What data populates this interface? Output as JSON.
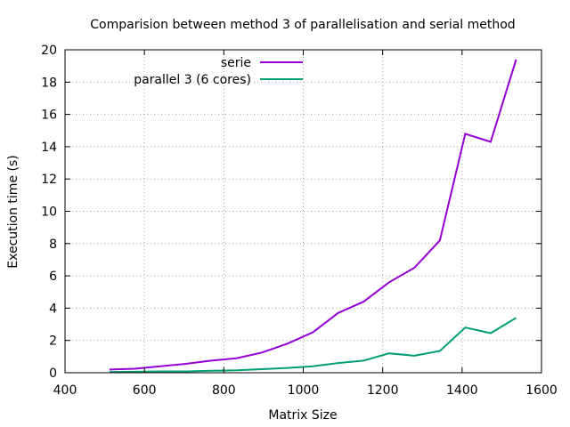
{
  "chart_data": {
    "type": "line",
    "title": "Comparision between method 3 of parallelisation and serial method",
    "xlabel": "Matrix Size",
    "ylabel": "Execution time (s)",
    "xlim": [
      400,
      1600
    ],
    "ylim": [
      0,
      20
    ],
    "xticks": [
      400,
      600,
      800,
      1000,
      1200,
      1400,
      1600
    ],
    "yticks": [
      0,
      2,
      4,
      6,
      8,
      10,
      12,
      14,
      16,
      18,
      20
    ],
    "grid": true,
    "legend_position": "top-center",
    "x": [
      512,
      576,
      640,
      704,
      768,
      832,
      896,
      960,
      1024,
      1088,
      1152,
      1216,
      1280,
      1344,
      1408,
      1472,
      1536
    ],
    "series": [
      {
        "name": "serie",
        "color": "#9400d3",
        "values": [
          0.2,
          0.25,
          0.4,
          0.55,
          0.75,
          0.9,
          1.25,
          1.8,
          2.5,
          3.7,
          4.4,
          5.6,
          6.5,
          8.2,
          14.8,
          14.3,
          19.4
        ]
      },
      {
        "name": "parallel 3 (6 cores)",
        "color": "#009e73",
        "values": [
          0.05,
          0.06,
          0.08,
          0.08,
          0.12,
          0.15,
          0.22,
          0.3,
          0.4,
          0.6,
          0.75,
          1.2,
          1.05,
          1.35,
          2.8,
          2.45,
          3.4
        ]
      }
    ]
  }
}
